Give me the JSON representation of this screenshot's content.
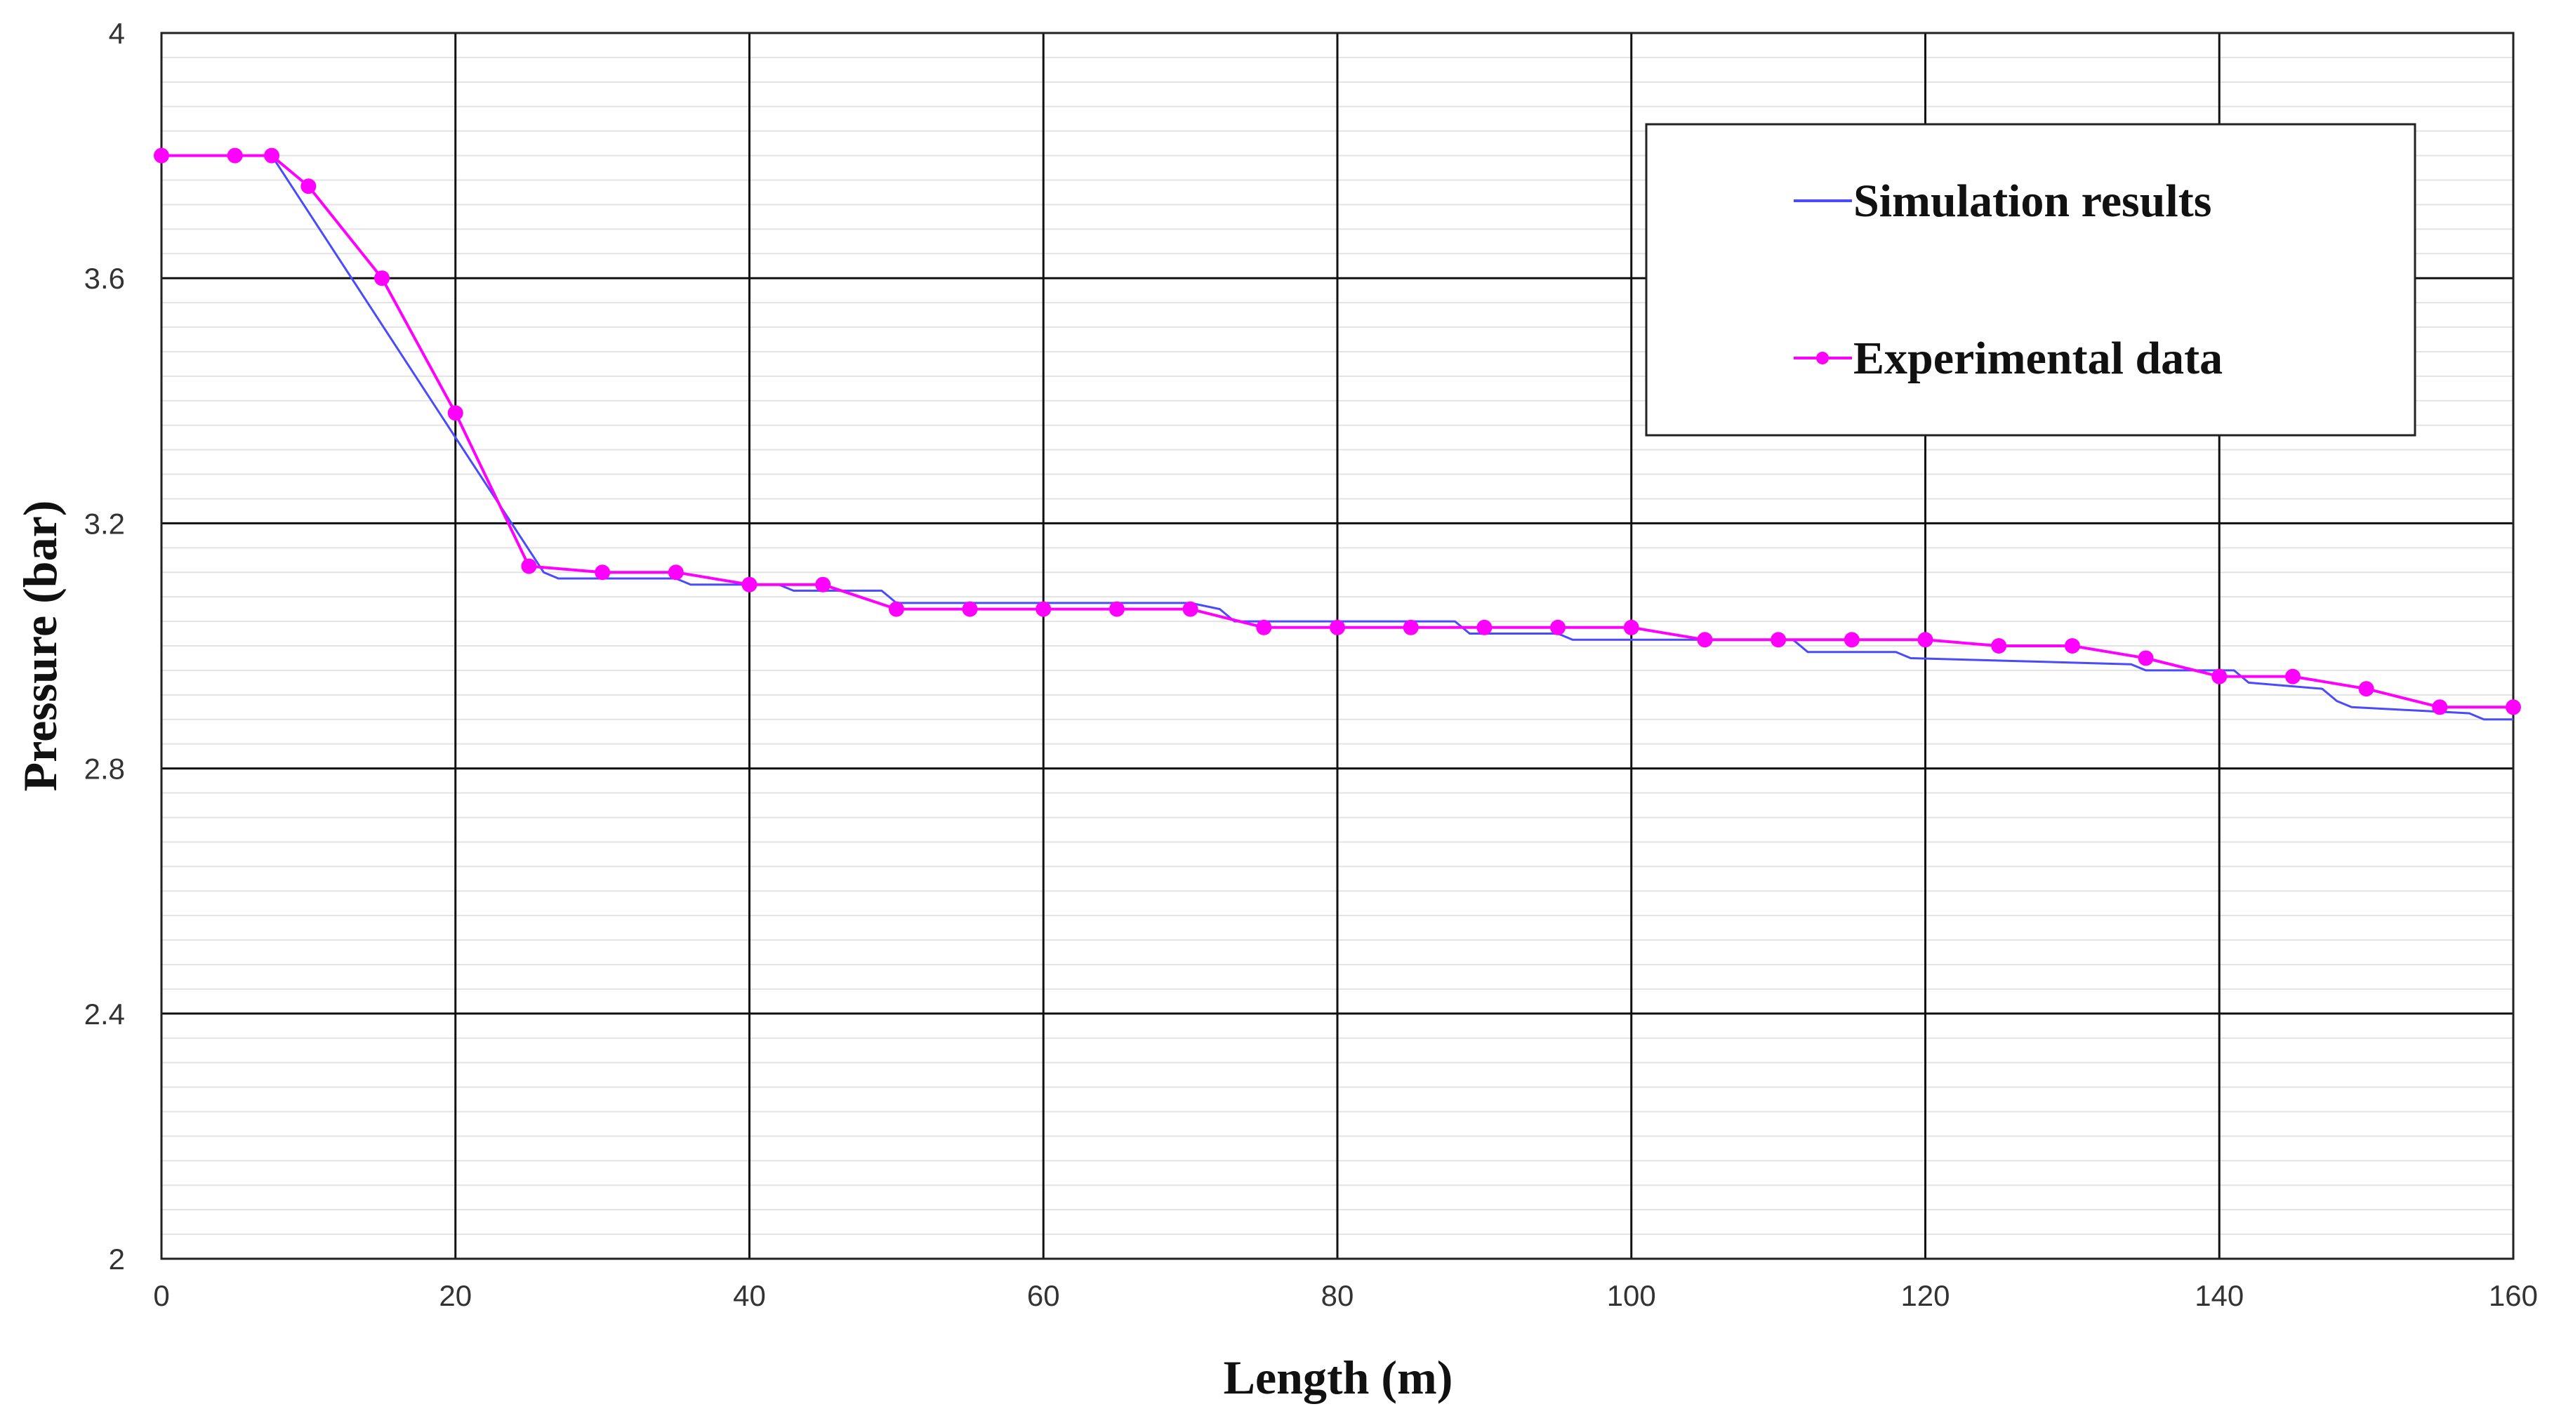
{
  "chart_data": {
    "type": "line",
    "xlabel": "Length (m)",
    "ylabel": "Pressure (bar)",
    "xlim": [
      0,
      160
    ],
    "ylim": [
      2,
      4
    ],
    "x_ticks": [
      "0",
      "20",
      "40",
      "60",
      "80",
      "100",
      "120",
      "140",
      "160"
    ],
    "y_ticks": [
      "2",
      "2.4",
      "2.8",
      "3.2",
      "3.6",
      "4"
    ],
    "grid": true,
    "legend_position": "top-right",
    "series": [
      {
        "name": "Simulation results",
        "color": "#4a4aff",
        "marker": "none",
        "x": [
          0,
          7.5,
          20,
          26,
          27,
          35,
          36,
          42,
          43,
          49,
          50,
          70,
          72,
          73,
          88,
          89,
          95,
          96,
          111,
          112,
          118,
          119,
          134,
          135,
          141,
          142,
          147,
          148,
          149,
          157,
          158,
          160
        ],
        "y": [
          3.8,
          3.8,
          3.34,
          3.12,
          3.11,
          3.11,
          3.1,
          3.1,
          3.09,
          3.09,
          3.07,
          3.07,
          3.06,
          3.04,
          3.04,
          3.02,
          3.02,
          3.01,
          3.01,
          2.99,
          2.99,
          2.98,
          2.97,
          2.96,
          2.96,
          2.94,
          2.93,
          2.91,
          2.9,
          2.89,
          2.88,
          2.88
        ]
      },
      {
        "name": "Experimental data",
        "color": "#ff00ff",
        "marker": "circle",
        "x": [
          0,
          5,
          7.5,
          10,
          15,
          20,
          25,
          30,
          35,
          40,
          45,
          50,
          55,
          60,
          65,
          70,
          75,
          80,
          85,
          90,
          95,
          100,
          105,
          110,
          115,
          120,
          125,
          130,
          135,
          140,
          145,
          150,
          155,
          160
        ],
        "y": [
          3.8,
          3.8,
          3.8,
          3.75,
          3.6,
          3.38,
          3.13,
          3.12,
          3.12,
          3.1,
          3.1,
          3.06,
          3.06,
          3.06,
          3.06,
          3.06,
          3.03,
          3.03,
          3.03,
          3.03,
          3.03,
          3.03,
          3.01,
          3.01,
          3.01,
          3.01,
          3.0,
          3.0,
          2.98,
          2.95,
          2.95,
          2.93,
          2.9,
          2.9
        ]
      }
    ]
  }
}
